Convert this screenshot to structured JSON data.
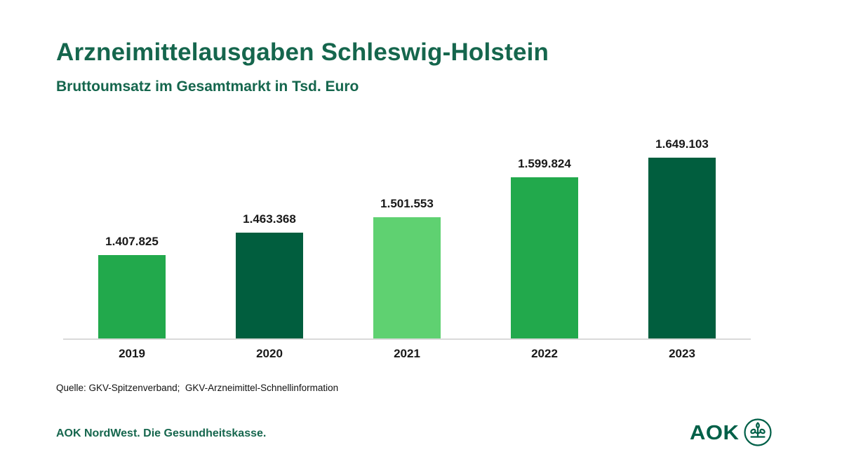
{
  "header": {
    "title": "Arzneimittelausgaben Schleswig-Holstein",
    "subtitle": "Bruttoumsatz im Gesamtmarkt in Tsd. Euro"
  },
  "chart_data": {
    "type": "bar",
    "title": "Arzneimittelausgaben Schleswig-Holstein",
    "subtitle": "Bruttoumsatz im Gesamtmarkt in Tsd. Euro",
    "unit": "Tsd. Euro",
    "categories": [
      "2019",
      "2020",
      "2021",
      "2022",
      "2023"
    ],
    "values": [
      1407825,
      1463368,
      1501553,
      1599824,
      1649103
    ],
    "value_labels": [
      "1.407.825",
      "1.463.368",
      "1.501.553",
      "1.599.824",
      "1.649.103"
    ],
    "bar_colors": [
      "#22a94c",
      "#015e3e",
      "#5fd171",
      "#22a94c",
      "#015e3e"
    ],
    "ylim": [
      1200000,
      1720000
    ],
    "grid": false,
    "legend_position": "none",
    "xlabel": "",
    "ylabel": ""
  },
  "source": {
    "text": "Quelle: GKV-Spitzenverband;  GKV-Arzneimittel-Schnellinformation"
  },
  "footer": {
    "claim": "AOK NordWest. Die Gesundheitskasse.",
    "logo_text": "AOK",
    "logo_icon": "aok-tree-of-life-icon"
  },
  "colors": {
    "heading_green": "#15664d",
    "logo_green": "#006048",
    "bar_medium_green": "#22a94c",
    "bar_dark_green": "#015e3e",
    "bar_light_green": "#5fd171",
    "axis_line": "#d9d9d9",
    "label_black": "#191919"
  }
}
